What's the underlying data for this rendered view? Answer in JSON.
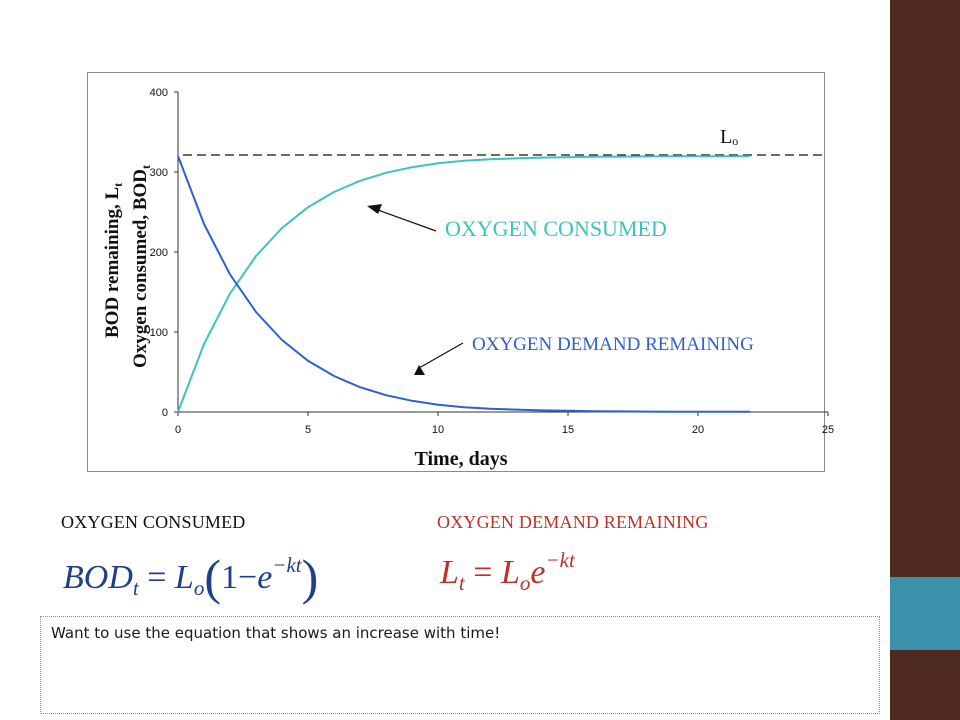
{
  "colors": {
    "sidebar_brown": "#4f2a20",
    "sidebar_blue": "#3b93ab",
    "consumed_line": "#3cc3bf",
    "remaining_line": "#2f5fd0",
    "remaining_label": "#c0302a",
    "equation_bod": "#1f3f86"
  },
  "chart_data": {
    "type": "line",
    "xlabel": "Time, days",
    "ylabel_1": "BOD remaining, L",
    "ylabel_1_sub": "t",
    "ylabel_2": "Oxygen consumed, BOD",
    "ylabel_2_sub": "t",
    "xlim": [
      0,
      25
    ],
    "ylim": [
      0,
      400
    ],
    "x_ticks": [
      "0",
      "5",
      "10",
      "15",
      "20",
      "25"
    ],
    "y_ticks": [
      "0",
      "100",
      "200",
      "300",
      "400"
    ],
    "grid": false,
    "reference_line": {
      "label": "L",
      "label_sub": "o",
      "y": 320,
      "style": "dashed"
    },
    "annotations": [
      {
        "text": "OXYGEN CONSUMED",
        "points_to": "Oxygen consumed"
      },
      {
        "text": "OXYGEN DEMAND REMAINING",
        "points_to": "Oxygen demand remaining"
      }
    ],
    "series": [
      {
        "name": "Oxygen consumed",
        "x": [
          0,
          1,
          2,
          3,
          4,
          5,
          6,
          7,
          8,
          9,
          10,
          11,
          12,
          13,
          14,
          15,
          16,
          17,
          18,
          19,
          20,
          21,
          22
        ],
        "y": [
          0,
          85,
          148,
          195,
          230,
          256,
          275,
          289,
          299,
          306,
          311,
          314,
          316,
          317,
          318,
          318.5,
          319,
          319.3,
          319.5,
          319.6,
          319.7,
          319.8,
          319.8
        ]
      },
      {
        "name": "Oxygen demand remaining",
        "x": [
          0,
          1,
          2,
          3,
          4,
          5,
          6,
          7,
          8,
          9,
          10,
          11,
          12,
          13,
          14,
          15,
          16,
          17,
          18,
          19,
          20,
          21,
          22
        ],
        "y": [
          320,
          235,
          172,
          125,
          90,
          64,
          45,
          31,
          21,
          14,
          9,
          6,
          4,
          3,
          2,
          1.5,
          1,
          0.7,
          0.5,
          0.4,
          0.3,
          0.2,
          0.2
        ]
      }
    ]
  },
  "labels": {
    "consumed_heading": "OXYGEN CONSUMED",
    "remaining_heading": "OXYGEN DEMAND REMAINING"
  },
  "equations": {
    "bod": {
      "lhs": "BOD",
      "lhs_sub": "t",
      "eq": "=",
      "L": "L",
      "L_sub": "o",
      "one": "1",
      "minus": "−",
      "e": "e",
      "exp": "−kt"
    },
    "lt": {
      "lhs": "L",
      "lhs_sub": "t",
      "eq": "=",
      "L": "L",
      "L_sub": "o",
      "e": "e",
      "exp": "−kt"
    }
  },
  "note": "Want to use the equation that shows an increase with time!"
}
